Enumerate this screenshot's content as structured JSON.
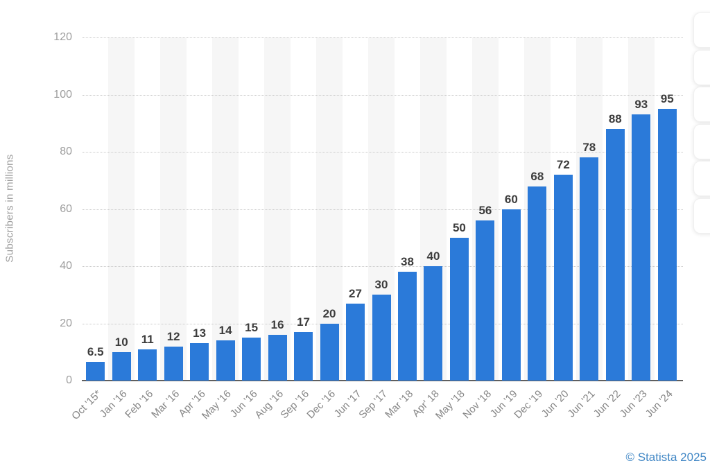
{
  "chart_data": {
    "type": "bar",
    "title": "",
    "xlabel": "",
    "ylabel": "Subscribers in millions",
    "categories": [
      "Oct '15*",
      "Jan '16",
      "Feb '16",
      "Mar '16",
      "Apr '16",
      "May '16",
      "Jun '16",
      "Aug '16",
      "Sep '16",
      "Dec '16",
      "Jun '17",
      "Sep '17",
      "Mar '18",
      "Apr' 18",
      "May '18",
      "Nov '18",
      "Jun '19",
      "Dec '19",
      "Jun '20",
      "Jun '21",
      "Jun '22",
      "Jun '23",
      "Jun '24"
    ],
    "values": [
      6.5,
      10,
      11,
      12,
      13,
      14,
      15,
      16,
      17,
      20,
      27,
      30,
      38,
      40,
      50,
      56,
      60,
      68,
      72,
      78,
      88,
      93,
      95
    ],
    "ylim": [
      0,
      120
    ],
    "yticks": [
      0,
      20,
      40,
      60,
      80,
      100,
      120
    ],
    "grid": "horizontal-dotted",
    "plot_bands": "alternating vertical column bands",
    "legend": "none",
    "colors": {
      "bar": "#2b7ad9",
      "band": "#f6f6f6",
      "gridline": "#c9c9c9",
      "axis_line": "#5f5f5f",
      "value_label": "#3d3d3d",
      "tick_label": "#858585"
    }
  },
  "side_toolbar": {
    "button_count": 6
  },
  "footer": {
    "copyright": "© Statista 2025",
    "copyright_color": "#4187c5"
  }
}
